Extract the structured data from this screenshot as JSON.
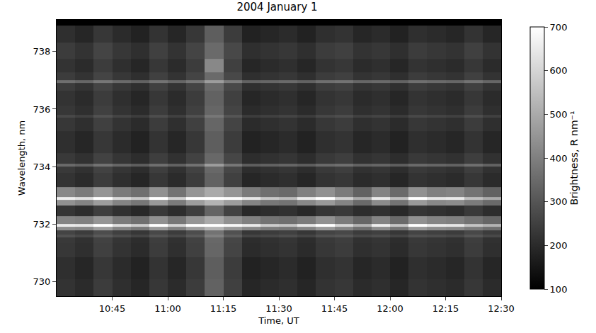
{
  "chart_data": {
    "type": "heatmap",
    "title": "2004 January 1",
    "x_label": "Time, UT",
    "y_label": "Wavelength, nm",
    "color": "gray",
    "x": [
      "2004-01-01 10:32:30",
      "2004-01-01 10:37:30",
      "2004-01-01 10:42:30",
      "2004-01-01 10:47:30",
      "2004-01-01 10:52:30",
      "2004-01-01 10:57:30",
      "2004-01-01 11:02:30",
      "2004-01-01 11:07:30",
      "2004-01-01 11:12:30",
      "2004-01-01 11:17:30",
      "2004-01-01 11:22:30",
      "2004-01-01 11:27:30",
      "2004-01-01 11:32:30",
      "2004-01-01 11:37:30",
      "2004-01-01 11:42:30",
      "2004-01-01 11:47:30",
      "2004-01-01 11:52:30",
      "2004-01-01 11:57:30",
      "2004-01-01 12:02:30",
      "2004-01-01 12:07:30",
      "2004-01-01 12:12:30",
      "2004-01-01 12:17:30",
      "2004-01-01 12:22:30",
      "2004-01-01 12:27:30"
    ],
    "y": [
      729.7,
      730.5,
      731.2,
      731.5,
      731.6,
      731.7,
      731.85,
      731.95,
      732.05,
      732.5,
      732.8,
      732.9,
      733.0,
      733.6,
      733.95,
      734.05,
      734.15,
      734.8,
      735.65,
      735.75,
      735.85,
      736.4,
      736.85,
      736.95,
      737.05,
      737.5,
      738.0,
      738.6
    ],
    "z": [
      [
        220,
        200,
        240,
        210,
        190,
        230,
        200,
        240,
        330,
        250,
        190,
        200,
        210,
        190,
        220,
        230,
        200,
        210,
        190,
        220,
        210,
        200,
        230,
        200
      ],
      [
        210,
        190,
        230,
        200,
        180,
        220,
        190,
        230,
        320,
        240,
        180,
        190,
        200,
        180,
        210,
        220,
        190,
        200,
        180,
        210,
        200,
        190,
        220,
        190
      ],
      [
        230,
        210,
        250,
        220,
        200,
        240,
        210,
        250,
        340,
        260,
        200,
        210,
        220,
        200,
        230,
        240,
        210,
        220,
        200,
        230,
        220,
        210,
        240,
        210
      ],
      [
        235,
        215,
        255,
        225,
        205,
        245,
        215,
        255,
        345,
        265,
        205,
        215,
        225,
        205,
        235,
        245,
        215,
        225,
        205,
        235,
        225,
        215,
        245,
        215
      ],
      [
        290,
        270,
        310,
        280,
        260,
        300,
        270,
        310,
        400,
        320,
        260,
        270,
        280,
        260,
        290,
        300,
        270,
        280,
        260,
        290,
        280,
        270,
        300,
        270
      ],
      [
        260,
        240,
        280,
        250,
        230,
        270,
        240,
        280,
        370,
        290,
        230,
        240,
        250,
        230,
        260,
        270,
        240,
        250,
        230,
        260,
        250,
        240,
        270,
        240
      ],
      [
        430,
        420,
        470,
        410,
        380,
        460,
        400,
        470,
        520,
        460,
        420,
        390,
        380,
        410,
        460,
        410,
        360,
        430,
        370,
        460,
        430,
        420,
        390,
        360
      ],
      [
        650,
        640,
        700,
        620,
        580,
        700,
        600,
        700,
        720,
        680,
        650,
        580,
        560,
        640,
        700,
        600,
        520,
        660,
        560,
        700,
        650,
        640,
        560,
        520
      ],
      [
        410,
        400,
        450,
        390,
        360,
        440,
        380,
        450,
        500,
        440,
        400,
        370,
        360,
        390,
        440,
        390,
        340,
        410,
        350,
        440,
        410,
        400,
        370,
        340
      ],
      [
        225,
        205,
        245,
        215,
        195,
        235,
        205,
        245,
        335,
        255,
        195,
        205,
        215,
        195,
        225,
        235,
        205,
        215,
        195,
        225,
        215,
        205,
        235,
        205
      ],
      [
        440,
        410,
        470,
        410,
        380,
        460,
        390,
        470,
        520,
        470,
        410,
        380,
        370,
        420,
        460,
        410,
        350,
        430,
        370,
        460,
        420,
        430,
        390,
        350
      ],
      [
        660,
        630,
        700,
        610,
        570,
        700,
        590,
        700,
        720,
        690,
        640,
        570,
        540,
        650,
        700,
        590,
        500,
        650,
        550,
        700,
        640,
        650,
        550,
        500
      ],
      [
        420,
        390,
        450,
        390,
        360,
        440,
        370,
        450,
        500,
        450,
        390,
        360,
        350,
        400,
        440,
        390,
        330,
        410,
        350,
        440,
        400,
        410,
        370,
        330
      ],
      [
        220,
        200,
        240,
        210,
        190,
        230,
        200,
        240,
        330,
        250,
        190,
        200,
        210,
        190,
        220,
        230,
        200,
        210,
        190,
        220,
        210,
        200,
        230,
        200
      ],
      [
        235,
        215,
        255,
        225,
        205,
        245,
        215,
        255,
        345,
        265,
        205,
        215,
        225,
        205,
        235,
        245,
        215,
        225,
        205,
        235,
        225,
        215,
        245,
        215
      ],
      [
        350,
        330,
        370,
        340,
        320,
        360,
        330,
        370,
        470,
        380,
        320,
        330,
        340,
        320,
        350,
        360,
        330,
        340,
        320,
        350,
        340,
        330,
        360,
        330
      ],
      [
        235,
        215,
        255,
        225,
        205,
        245,
        215,
        255,
        345,
        265,
        205,
        215,
        225,
        205,
        235,
        245,
        215,
        225,
        205,
        235,
        225,
        215,
        245,
        215
      ],
      [
        210,
        190,
        230,
        200,
        180,
        220,
        190,
        230,
        320,
        240,
        180,
        190,
        200,
        180,
        210,
        220,
        190,
        200,
        180,
        210,
        200,
        190,
        220,
        190
      ],
      [
        230,
        210,
        250,
        220,
        200,
        240,
        210,
        250,
        340,
        260,
        200,
        210,
        220,
        200,
        230,
        240,
        210,
        220,
        200,
        230,
        220,
        210,
        240,
        210
      ],
      [
        270,
        250,
        290,
        260,
        240,
        280,
        250,
        290,
        380,
        300,
        240,
        250,
        260,
        240,
        270,
        280,
        250,
        260,
        240,
        270,
        260,
        250,
        280,
        250
      ],
      [
        230,
        210,
        250,
        220,
        200,
        240,
        210,
        250,
        340,
        260,
        200,
        210,
        220,
        200,
        230,
        240,
        210,
        220,
        200,
        230,
        220,
        210,
        240,
        210
      ],
      [
        220,
        200,
        240,
        210,
        190,
        230,
        200,
        240,
        330,
        250,
        190,
        200,
        210,
        190,
        220,
        230,
        200,
        210,
        190,
        220,
        210,
        200,
        230,
        200
      ],
      [
        240,
        220,
        260,
        230,
        210,
        250,
        220,
        260,
        350,
        270,
        210,
        220,
        230,
        210,
        240,
        250,
        220,
        230,
        210,
        240,
        230,
        220,
        250,
        220
      ],
      [
        360,
        340,
        380,
        350,
        330,
        370,
        340,
        380,
        470,
        390,
        330,
        340,
        350,
        330,
        360,
        370,
        340,
        350,
        330,
        360,
        350,
        340,
        370,
        340
      ],
      [
        240,
        220,
        260,
        230,
        210,
        250,
        220,
        260,
        350,
        270,
        210,
        220,
        230,
        210,
        240,
        250,
        220,
        230,
        210,
        240,
        230,
        220,
        250,
        220
      ],
      [
        220,
        200,
        240,
        210,
        190,
        230,
        200,
        240,
        420,
        250,
        190,
        200,
        210,
        190,
        220,
        230,
        200,
        210,
        190,
        220,
        210,
        200,
        230,
        200
      ],
      [
        240,
        220,
        260,
        230,
        210,
        250,
        220,
        260,
        350,
        270,
        210,
        220,
        230,
        210,
        240,
        250,
        220,
        230,
        210,
        240,
        230,
        220,
        250,
        220
      ],
      [
        210,
        190,
        230,
        200,
        180,
        220,
        190,
        230,
        320,
        240,
        180,
        190,
        200,
        180,
        210,
        220,
        190,
        200,
        180,
        210,
        200,
        190,
        220,
        190
      ]
    ],
    "xlim": [
      "2004-01-01 10:30",
      "2004-01-01 12:30"
    ],
    "xticks": [
      {
        "value": "2004-01-01 10:45",
        "label": "10:45"
      },
      {
        "value": "2004-01-01 11:00",
        "label": "11:00"
      },
      {
        "value": "2004-01-01 11:15",
        "label": "11:15"
      },
      {
        "value": "2004-01-01 11:30",
        "label": "11:30"
      },
      {
        "value": "2004-01-01 11:45",
        "label": "11:45"
      },
      {
        "value": "2004-01-01 12:00",
        "label": "12:00"
      },
      {
        "value": "2004-01-01 12:15",
        "label": "12:15"
      },
      {
        "value": "2004-01-01 12:30",
        "label": "12:30"
      }
    ],
    "ylim": [
      729.5,
      739.1
    ],
    "yticks": [
      730,
      732,
      734,
      736,
      738
    ],
    "colorbar": {
      "label": "Brightness, R nm⁻¹",
      "range": [
        100,
        700
      ],
      "ticks": [
        100,
        200,
        300,
        400,
        500,
        600,
        700
      ]
    }
  }
}
